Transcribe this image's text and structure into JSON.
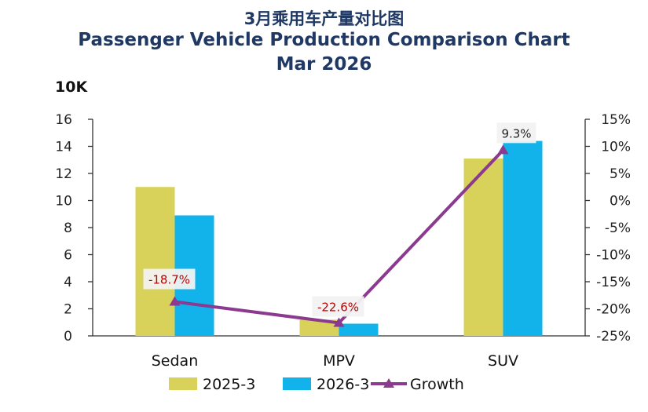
{
  "header": {
    "title_cn": "3月乘用车产量对比图",
    "title_en": "Passenger Vehicle Production Comparison Chart",
    "period": "Mar 2026",
    "unit": "10K"
  },
  "colors": {
    "series_2025": "#d9d25a",
    "series_2026": "#11b3ea",
    "growth": "#8b3a8f",
    "axis": "#333333"
  },
  "chart_data": {
    "type": "bar",
    "title": "Passenger Vehicle Production Comparison Chart",
    "categories": [
      "Sedan",
      "MPV",
      "SUV"
    ],
    "series": [
      {
        "name": "2025-3",
        "values": [
          11.0,
          1.2,
          13.1
        ]
      },
      {
        "name": "2026-3",
        "values": [
          8.9,
          0.9,
          14.4
        ]
      }
    ],
    "line_series": {
      "name": "Growth",
      "values": [
        -18.7,
        -22.6,
        9.3
      ],
      "labels": [
        "-18.7%",
        "-22.6%",
        "9.3%"
      ],
      "axis": "right"
    },
    "ylim": [
      0,
      16
    ],
    "yticks": [
      0,
      2,
      4,
      6,
      8,
      10,
      12,
      14,
      16
    ],
    "ytick_labels": [
      "0",
      "2",
      "4",
      "6",
      "8",
      "10",
      "12",
      "14",
      "16"
    ],
    "y2lim": [
      -25,
      15
    ],
    "y2ticks": [
      -25,
      -20,
      -15,
      -10,
      -5,
      0,
      5,
      10,
      15
    ],
    "y2tick_labels": [
      "-25%",
      "-20%",
      "-15%",
      "-10%",
      "-5%",
      "0%",
      "5%",
      "10%",
      "15%"
    ],
    "ylabel": "10K",
    "legend_position": "bottom"
  }
}
